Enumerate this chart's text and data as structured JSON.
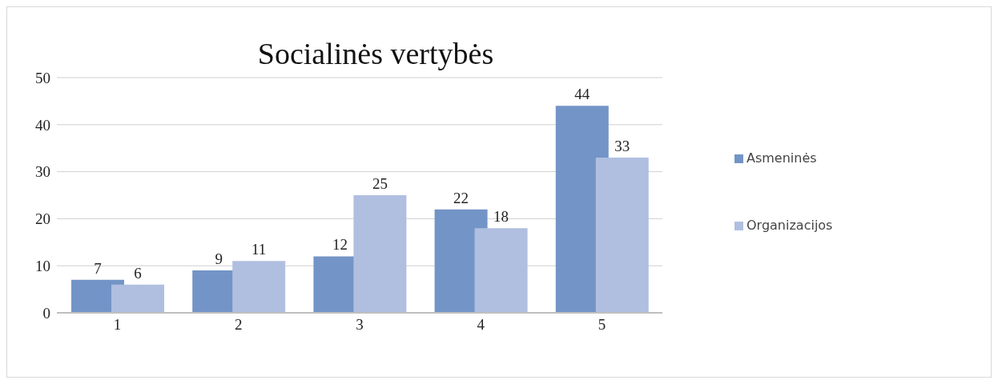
{
  "chart_data": {
    "type": "bar",
    "title": "Socialinės vertybės",
    "categories": [
      "1",
      "2",
      "3",
      "4",
      "5"
    ],
    "series": [
      {
        "name": "Asmeninės",
        "color": "#7394c6",
        "values": [
          7,
          9,
          12,
          22,
          44
        ]
      },
      {
        "name": "Organizacijos",
        "color": "#b0bfe0",
        "values": [
          6,
          11,
          25,
          18,
          33
        ]
      }
    ],
    "ylim": [
      0,
      50
    ],
    "yticks": [
      0,
      10,
      20,
      30,
      40,
      50
    ],
    "grid": "y",
    "legend": "right",
    "data_labels": true
  }
}
